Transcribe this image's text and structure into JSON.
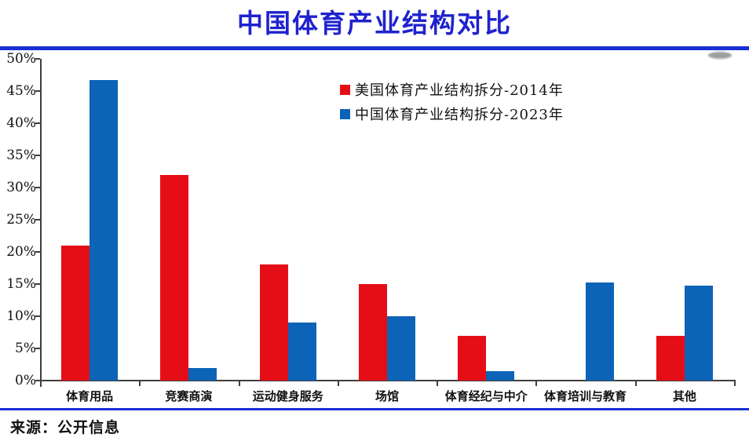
{
  "header": {
    "title": "中国体育产业结构对比"
  },
  "colors": {
    "title_blue": "#1f22cd",
    "rule_blue": "#1b2fd6",
    "us_red": "#e60e16",
    "china_blue": "#0d63b8",
    "axis_gray": "#3f3f3f",
    "watermark_gray": "#8d8d8d",
    "text_black": "#111111"
  },
  "chart_data": {
    "type": "bar",
    "title": "中国体育产业结构对比",
    "categories": [
      "体育用品",
      "竞赛商演",
      "运动健身服务",
      "场馆",
      "体育经纪与中介",
      "体育培训与教育",
      "其他"
    ],
    "series": [
      {
        "name": "美国体育产业结构拆分-2014年",
        "color": "#e60e16",
        "values": [
          21,
          32,
          18,
          15,
          7,
          0,
          7
        ]
      },
      {
        "name": "中国体育产业结构拆分-2023年",
        "color": "#0d63b8",
        "values": [
          46.7,
          2,
          9,
          10,
          1.5,
          15.2,
          14.8
        ]
      }
    ],
    "xlabel": "",
    "ylabel": "",
    "ylim": [
      0,
      50
    ],
    "ytick_step": 5,
    "ytick_labels": [
      "0%",
      "5%",
      "10%",
      "15%",
      "20%",
      "25%",
      "30%",
      "35%",
      "40%",
      "45%",
      "50%"
    ],
    "grid": false,
    "legend_position": "inside-top-center"
  },
  "footer": {
    "source_label": "来源：公开信息"
  }
}
